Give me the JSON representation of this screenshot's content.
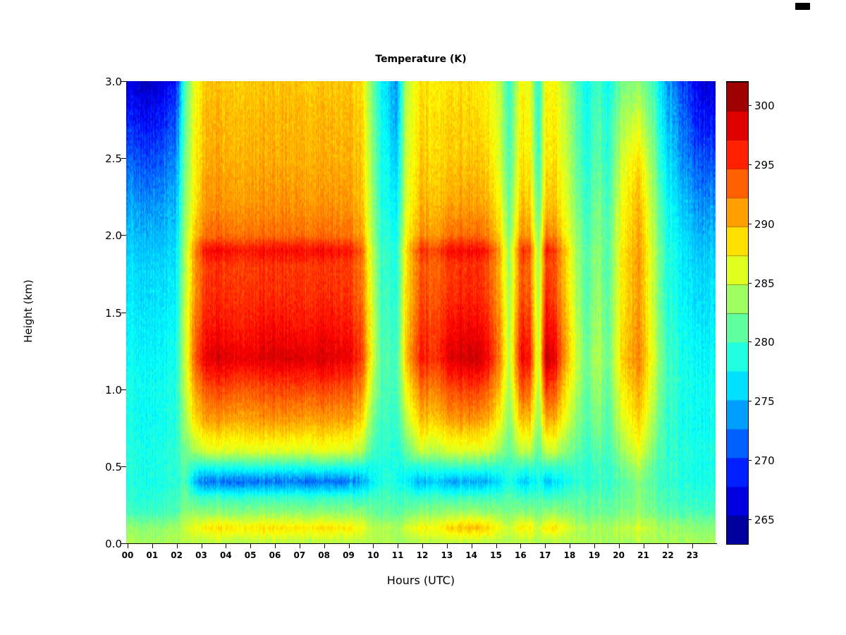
{
  "title": "Temperature (K)",
  "axes": {
    "x_title": "Hours (UTC)",
    "y_title": "Height (km)",
    "x_ticks": [
      "00",
      "01",
      "02",
      "03",
      "04",
      "05",
      "06",
      "07",
      "08",
      "09",
      "10",
      "11",
      "12",
      "13",
      "14",
      "15",
      "16",
      "17",
      "18",
      "19",
      "20",
      "21",
      "22",
      "23"
    ],
    "y_ticks": [
      "0.0",
      "0.5",
      "1.0",
      "1.5",
      "2.0",
      "2.5",
      "3.0"
    ]
  },
  "colorbar": {
    "ticks": [
      265,
      270,
      275,
      280,
      285,
      290,
      295,
      300
    ],
    "min": 263,
    "max": 302,
    "blocks": 16,
    "colormap": "jet",
    "dark_blue": "#00008f",
    "dark_red": "#800000"
  },
  "chart_data": {
    "type": "heatmap",
    "title": "Temperature (K)",
    "xlabel": "Hours (UTC)",
    "ylabel": "Height (km)",
    "value_units": "K",
    "x_range_hours": [
      0,
      24
    ],
    "y_range_km": [
      0,
      3
    ],
    "value_range": [
      263,
      302
    ],
    "colormap": "jet",
    "quant_levels": 64,
    "noise_amplitude_K": 1.3,
    "heights_km": [
      0,
      0.1,
      0.2,
      0.3,
      0.4,
      0.5,
      0.6,
      0.8,
      1.0,
      1.2,
      1.4,
      1.6,
      1.8,
      1.9,
      2.0,
      2.2,
      2.5,
      2.8,
      3.0
    ],
    "keyframes": [
      {
        "t": 0.0,
        "temps": [
          284,
          283,
          280,
          279,
          278.5,
          278.5,
          278.5,
          278,
          278,
          277.5,
          277,
          276.5,
          276,
          275.5,
          275,
          273.5,
          271,
          268,
          266
        ]
      },
      {
        "t": 1.0,
        "temps": [
          284,
          283,
          280,
          279,
          278.5,
          278.5,
          278.5,
          278,
          278,
          277.5,
          277,
          276.5,
          276,
          275.5,
          275,
          273.5,
          270.5,
          267.5,
          265.5
        ]
      },
      {
        "t": 2.0,
        "temps": [
          284,
          283.5,
          280.5,
          279.5,
          279,
          279,
          279,
          278.5,
          278.5,
          278,
          277.5,
          277,
          276.5,
          276,
          275.5,
          274.5,
          272.5,
          270,
          268
        ]
      },
      {
        "t": 2.4,
        "temps": [
          284.5,
          285,
          283,
          281.5,
          280.5,
          281,
          282,
          283.5,
          284.5,
          285,
          285,
          284.5,
          284,
          284,
          283.5,
          283,
          282,
          281,
          280.5
        ]
      },
      {
        "t": 2.8,
        "temps": [
          284.5,
          287,
          283,
          280,
          275,
          279,
          284,
          288.5,
          291,
          293.5,
          292.5,
          291.5,
          291,
          292,
          289.5,
          288,
          287.5,
          287,
          286.5
        ]
      },
      {
        "t": 3.2,
        "temps": [
          284.5,
          288,
          283,
          279.5,
          272.5,
          279,
          286,
          291,
          294,
          298,
          296.5,
          295.5,
          295,
          297,
          293,
          291.5,
          290.5,
          290,
          289.5
        ]
      },
      {
        "t": 4.0,
        "temps": [
          284.5,
          288.5,
          283,
          279.5,
          272,
          279,
          286,
          291,
          294.5,
          298.5,
          296.5,
          295.5,
          295,
          297,
          293,
          291.5,
          290.5,
          290,
          289.5
        ]
      },
      {
        "t": 5.0,
        "temps": [
          284.5,
          288,
          283,
          279.5,
          272.5,
          279.5,
          286.5,
          291,
          294,
          298,
          296.5,
          295.5,
          295,
          296.5,
          293,
          291.5,
          290.5,
          290,
          289.5
        ]
      },
      {
        "t": 6.0,
        "temps": [
          284.5,
          288.5,
          283,
          279.5,
          272,
          279,
          286,
          291.5,
          294.5,
          298.5,
          297,
          295.5,
          295,
          297,
          293,
          291.5,
          290.5,
          290,
          289.5
        ]
      },
      {
        "t": 7.0,
        "temps": [
          284.5,
          288,
          283,
          279.5,
          272.5,
          279,
          286,
          291,
          294.5,
          298.5,
          296.5,
          295.5,
          295,
          297,
          293,
          291.5,
          290.5,
          290,
          289.5
        ]
      },
      {
        "t": 8.0,
        "temps": [
          284.5,
          288.5,
          283,
          279.5,
          272,
          279.5,
          286.5,
          291,
          294.5,
          298.5,
          297,
          295.5,
          295,
          297,
          293,
          291.5,
          290.5,
          290,
          289.5
        ]
      },
      {
        "t": 9.0,
        "temps": [
          284.5,
          288,
          283,
          279.5,
          272.5,
          279,
          286,
          291,
          294,
          298,
          296.5,
          295.5,
          295,
          296.5,
          293,
          291.5,
          290.5,
          290,
          289.5
        ]
      },
      {
        "t": 9.6,
        "temps": [
          284.5,
          287,
          283,
          279.5,
          274,
          279,
          284.5,
          289,
          292,
          295,
          294,
          293,
          292.5,
          293.5,
          291,
          290,
          289.5,
          289,
          288.5
        ]
      },
      {
        "t": 10.0,
        "temps": [
          284.5,
          285,
          282,
          280,
          277,
          278.5,
          280.5,
          283,
          285,
          287,
          286.5,
          286,
          285.5,
          285.5,
          284.5,
          284,
          283.5,
          283,
          282.5
        ]
      },
      {
        "t": 10.4,
        "temps": [
          284,
          284,
          281,
          280,
          278.5,
          278.5,
          279,
          279.5,
          280,
          280.5,
          280,
          279.5,
          279.5,
          279.5,
          279,
          278.5,
          278,
          277.5,
          277
        ]
      },
      {
        "t": 11.0,
        "temps": [
          284,
          284,
          281,
          280,
          278.5,
          278.5,
          279,
          279.5,
          280,
          280,
          279.5,
          279,
          278.5,
          278.5,
          278,
          277,
          275.5,
          274,
          273.5
        ]
      },
      {
        "t": 11.4,
        "temps": [
          284,
          285.5,
          282,
          280,
          277.5,
          279,
          281.5,
          284.5,
          287,
          289.5,
          289,
          288.5,
          288,
          288.5,
          287,
          286,
          285.5,
          285,
          284.5
        ]
      },
      {
        "t": 12.0,
        "temps": [
          284.5,
          287.5,
          283,
          279.5,
          274.5,
          279.5,
          285.5,
          290,
          293,
          296.5,
          295.5,
          294.5,
          294,
          295.5,
          292,
          290.5,
          289.5,
          289,
          288.5
        ]
      },
      {
        "t": 12.6,
        "temps": [
          284.5,
          287,
          283,
          280,
          276,
          279.5,
          284.5,
          289,
          292,
          295,
          294.5,
          293.5,
          293,
          294,
          291,
          289.5,
          288.5,
          288,
          287.5
        ]
      },
      {
        "t": 13.2,
        "temps": [
          284.5,
          289,
          283.5,
          279.5,
          274,
          280,
          286,
          291,
          294.5,
          298.5,
          297,
          295.5,
          295,
          297,
          293,
          291,
          289.5,
          289,
          288.5
        ]
      },
      {
        "t": 14.0,
        "temps": [
          284.5,
          290,
          284,
          280,
          274.5,
          280,
          286,
          291.5,
          295,
          299,
          297.5,
          296,
          295.5,
          297,
          293,
          291,
          289.5,
          289,
          288.5
        ]
      },
      {
        "t": 14.6,
        "temps": [
          284.5,
          289.5,
          283.5,
          280,
          274.5,
          280,
          286,
          291,
          294.5,
          298.5,
          297,
          295.5,
          295,
          297,
          293,
          291,
          289.5,
          288.5,
          288
        ]
      },
      {
        "t": 15.2,
        "temps": [
          284.5,
          287,
          283,
          280,
          276.5,
          279.5,
          283.5,
          287.5,
          290,
          292.5,
          292,
          291,
          290.5,
          291,
          289,
          287.5,
          286,
          285.5,
          285
        ]
      },
      {
        "t": 15.6,
        "temps": [
          284,
          285,
          282,
          280.5,
          279,
          279.5,
          281,
          282.5,
          283.5,
          284.5,
          284,
          283.5,
          283,
          283,
          282,
          281,
          280,
          279.5,
          279
        ]
      },
      {
        "t": 16.1,
        "temps": [
          284.5,
          288,
          283,
          280,
          276,
          280,
          285,
          290,
          294,
          297.5,
          296,
          294.5,
          294,
          295.5,
          292,
          290,
          288.5,
          288,
          287.5
        ]
      },
      {
        "t": 16.4,
        "temps": [
          284.5,
          288,
          283,
          280,
          276,
          280,
          285,
          290,
          293.5,
          297,
          295.5,
          294,
          293.5,
          295,
          291.5,
          289.5,
          288,
          287.5,
          287
        ]
      },
      {
        "t": 16.8,
        "temps": [
          284,
          285,
          282,
          280.5,
          278.5,
          279.5,
          281,
          283,
          284,
          285,
          284.5,
          284,
          283.5,
          283.5,
          282.5,
          281,
          279.5,
          279,
          278.5
        ]
      },
      {
        "t": 17.1,
        "temps": [
          284.5,
          288.5,
          283.5,
          280,
          275.5,
          280.5,
          286,
          291.5,
          296,
          300.5,
          298.5,
          296.5,
          295.5,
          297,
          293,
          290.5,
          289,
          288.5,
          288
        ]
      },
      {
        "t": 17.5,
        "temps": [
          284.5,
          288,
          283,
          280,
          276.5,
          280,
          285,
          290,
          293.5,
          297,
          295.5,
          294,
          293.5,
          294.5,
          291.5,
          289.5,
          288,
          287.5,
          287
        ]
      },
      {
        "t": 17.9,
        "temps": [
          284.5,
          286.5,
          283,
          280.5,
          278,
          280,
          283,
          286.5,
          288.5,
          291,
          290.5,
          289.5,
          289,
          289.5,
          287.5,
          286.5,
          285.5,
          285,
          284.5
        ]
      },
      {
        "t": 18.3,
        "temps": [
          284,
          285,
          282.5,
          281,
          279.5,
          280,
          281.5,
          283.5,
          285,
          286,
          285.5,
          285,
          284.5,
          284.5,
          284,
          283,
          282,
          281.5,
          281
        ]
      },
      {
        "t": 18.7,
        "temps": [
          284,
          284,
          281.5,
          280.5,
          279,
          279,
          279.5,
          280.5,
          281,
          281.5,
          281,
          280.5,
          280.5,
          280.5,
          280,
          279.5,
          278.5,
          278,
          277.5
        ]
      },
      {
        "t": 19.2,
        "temps": [
          284,
          284.5,
          282,
          281,
          280,
          280.5,
          281.5,
          283,
          284,
          285,
          284.5,
          284,
          283.5,
          283.5,
          283,
          282.5,
          281.5,
          281,
          280.5
        ]
      },
      {
        "t": 19.6,
        "temps": [
          284,
          284,
          281.5,
          280.5,
          279.5,
          279.5,
          280,
          280.5,
          281,
          281.5,
          281,
          281,
          280.5,
          280.5,
          280.5,
          280,
          279,
          278.5,
          278
        ]
      },
      {
        "t": 20.2,
        "temps": [
          284,
          285,
          282.5,
          281.5,
          281,
          282,
          283.5,
          286,
          287.5,
          289,
          288.5,
          288,
          288,
          288,
          287.5,
          287,
          285.5,
          283.5,
          282
        ]
      },
      {
        "t": 20.6,
        "temps": [
          284,
          285.5,
          283,
          282.5,
          282.5,
          284,
          286,
          288.5,
          290,
          291.5,
          291,
          290.5,
          290.5,
          290.5,
          290,
          289.5,
          288,
          285,
          283
        ]
      },
      {
        "t": 21.0,
        "temps": [
          284,
          285.5,
          283,
          282.5,
          282.5,
          284,
          286,
          288.5,
          290,
          291.5,
          291,
          290.5,
          290.5,
          290.5,
          290,
          289.5,
          287.5,
          284.5,
          282.5
        ]
      },
      {
        "t": 21.5,
        "temps": [
          284,
          284.5,
          282,
          281,
          280.5,
          281,
          282,
          283.5,
          284.5,
          285.5,
          285,
          284.5,
          284.5,
          284.5,
          284,
          283.5,
          282,
          280.5,
          279.5
        ]
      },
      {
        "t": 22.0,
        "temps": [
          284,
          283.5,
          281,
          280,
          279.5,
          279.5,
          279.5,
          279.5,
          280,
          280,
          279.5,
          279,
          279,
          279,
          278.5,
          278,
          276.5,
          275,
          274
        ]
      },
      {
        "t": 22.7,
        "temps": [
          284,
          283.5,
          280.5,
          279.5,
          279,
          279,
          279,
          278.5,
          278.5,
          278.5,
          278,
          277.5,
          277,
          277,
          276.5,
          275.5,
          273.5,
          271.5,
          270.5
        ]
      },
      {
        "t": 23.3,
        "temps": [
          284,
          283,
          280.5,
          279.5,
          278.5,
          278.5,
          278.5,
          278,
          278,
          277.5,
          277,
          276.5,
          276,
          275.5,
          275,
          273.5,
          271,
          268.5,
          267
        ]
      },
      {
        "t": 24.0,
        "temps": [
          284,
          283,
          280,
          279,
          278.5,
          278.5,
          278.5,
          278,
          278,
          277.5,
          277,
          276.5,
          276,
          275.5,
          275,
          273.5,
          270.5,
          267.5,
          266
        ]
      }
    ]
  }
}
